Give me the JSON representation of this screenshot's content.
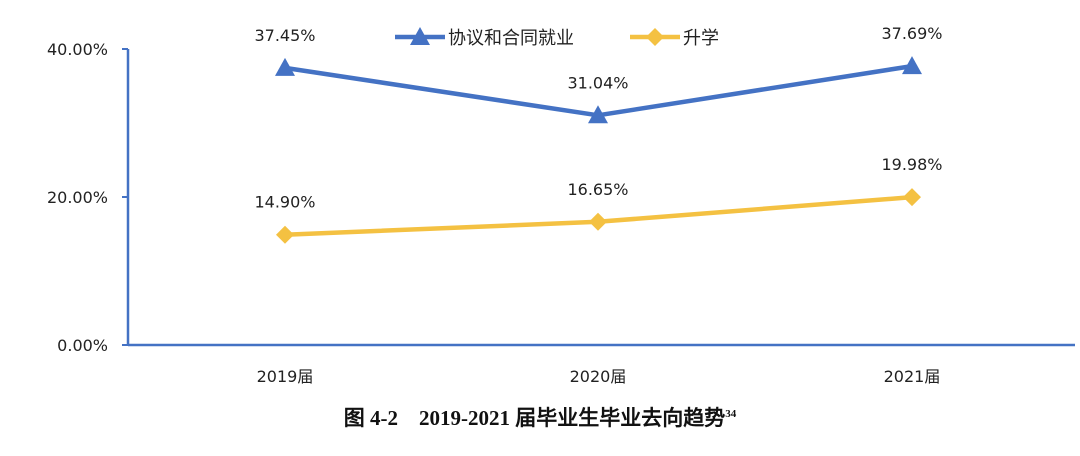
{
  "chart_data": {
    "type": "line",
    "categories": [
      "2019届",
      "2020届",
      "2021届"
    ],
    "series": [
      {
        "name": "协议和合同就业",
        "values": [
          37.45,
          31.04,
          37.69
        ],
        "labels": [
          "37.45%",
          "31.04%",
          "37.69%"
        ],
        "color": "#4472C4",
        "marker": "triangle"
      },
      {
        "name": "升学",
        "values": [
          14.9,
          16.65,
          19.98
        ],
        "labels": [
          "14.90%",
          "16.65%",
          "19.98%"
        ],
        "color": "#F4C142",
        "marker": "diamond"
      }
    ],
    "yticks": [
      0,
      20,
      40
    ],
    "ytick_labels": [
      "0.00%",
      "20.00%",
      "40.00%"
    ],
    "ylim": [
      0,
      40
    ],
    "grid": false,
    "legend": "top-center",
    "axis_color": "#4472C4"
  },
  "caption": {
    "text": "图 4-2　2019-2021 届毕业生毕业去向趋势",
    "footnote": "34"
  }
}
